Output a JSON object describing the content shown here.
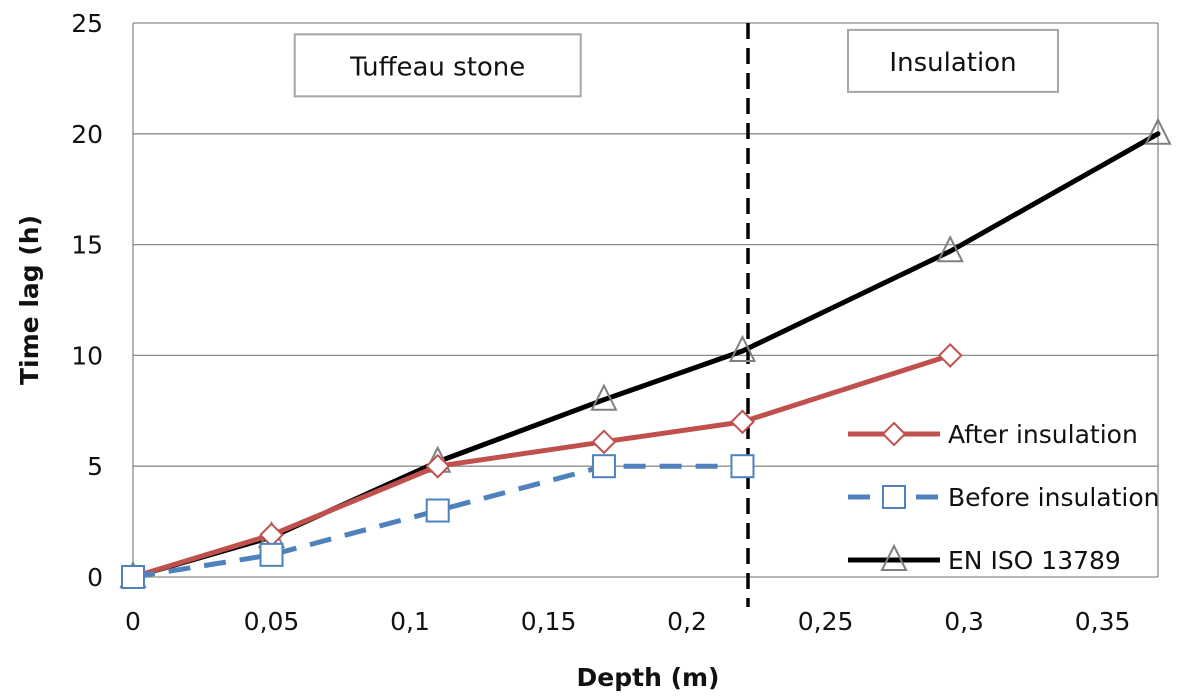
{
  "chart_data": {
    "type": "line",
    "xlabel": "Depth (m)",
    "ylabel": "Time lag (h)",
    "xlim": [
      0,
      0.37
    ],
    "ylim": [
      0,
      25
    ],
    "x_ticks": [
      {
        "value": 0,
        "label": "0"
      },
      {
        "value": 0.05,
        "label": "0,05"
      },
      {
        "value": 0.1,
        "label": "0,1"
      },
      {
        "value": 0.15,
        "label": "0,15"
      },
      {
        "value": 0.2,
        "label": "0,2"
      },
      {
        "value": 0.25,
        "label": "0,25"
      },
      {
        "value": 0.3,
        "label": "0,3"
      },
      {
        "value": 0.35,
        "label": "0,35"
      }
    ],
    "y_ticks": [
      {
        "value": 0,
        "label": "0"
      },
      {
        "value": 5,
        "label": "5"
      },
      {
        "value": 10,
        "label": "10"
      },
      {
        "value": 15,
        "label": "15"
      },
      {
        "value": 20,
        "label": "20"
      },
      {
        "value": 25,
        "label": "25"
      }
    ],
    "grid": "horizontal",
    "legend_position": "right",
    "divider_x": 0.222,
    "annotations": [
      {
        "text": "Tuffeau stone",
        "x": 0.11,
        "y": 23
      },
      {
        "text": "Insulation",
        "x": 0.296,
        "y": 23.2
      }
    ],
    "series": [
      {
        "name": "After insulation",
        "color": "#c0504d",
        "dash": "solid",
        "marker": "diamond",
        "x": [
          0,
          0.05,
          0.11,
          0.17,
          0.22,
          0.295
        ],
        "y": [
          0,
          1.9,
          5.0,
          6.1,
          7.0,
          10.0
        ]
      },
      {
        "name": "Before insulation",
        "color": "#4f81bd",
        "dash": "dashed",
        "marker": "square",
        "x": [
          0,
          0.05,
          0.11,
          0.17,
          0.22
        ],
        "y": [
          0,
          1.0,
          3.0,
          5.0,
          5.0
        ]
      },
      {
        "name": "EN ISO 13789",
        "color": "#000000",
        "dash": "solid",
        "marker": "triangle",
        "x": [
          0,
          0.05,
          0.11,
          0.17,
          0.22,
          0.295,
          0.37
        ],
        "y": [
          0,
          1.8,
          5.2,
          8.0,
          10.2,
          14.7,
          20.0
        ]
      }
    ]
  }
}
